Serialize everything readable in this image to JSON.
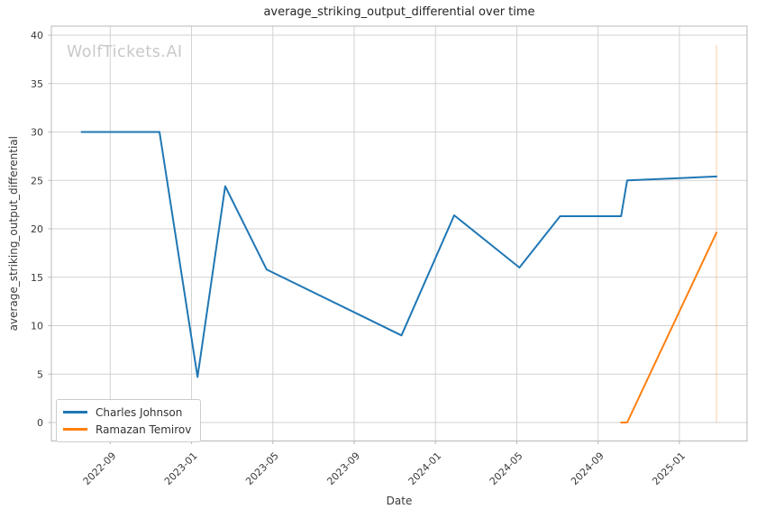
{
  "watermark": "WolfTickets.AI",
  "chart_data": {
    "type": "line",
    "title": "average_striking_output_differential over time",
    "xlabel": "Date",
    "ylabel": "average_striking_output_differential",
    "grid": true,
    "legend_position": "lower left",
    "x_ticks": [
      "2022-09",
      "2023-01",
      "2023-05",
      "2023-09",
      "2024-01",
      "2024-05",
      "2024-09",
      "2025-01"
    ],
    "y_ticks": [
      0,
      5,
      10,
      15,
      20,
      25,
      30,
      35,
      40
    ],
    "ylim": [
      -1.95,
      40.95
    ],
    "xlim": [
      "2022-06-04",
      "2025-04-10"
    ],
    "series": [
      {
        "name": "Charles Johnson",
        "color": "#1f77b4",
        "points": [
          [
            "2022-07-19",
            30.0
          ],
          [
            "2022-11-14",
            30.0
          ],
          [
            "2023-01-10",
            4.7
          ],
          [
            "2023-02-21",
            24.4
          ],
          [
            "2023-04-22",
            15.8
          ],
          [
            "2023-11-11",
            9.0
          ],
          [
            "2024-01-29",
            21.4
          ],
          [
            "2024-05-05",
            16.0
          ],
          [
            "2024-07-05",
            21.3
          ],
          [
            "2024-10-05",
            21.3
          ],
          [
            "2024-10-14",
            25.0
          ],
          [
            "2025-02-26",
            25.4
          ]
        ]
      },
      {
        "name": "Ramazan Temirov",
        "color": "#ff7f0e",
        "points": [
          [
            "2024-10-05",
            0.0
          ],
          [
            "2024-10-14",
            0.0
          ],
          [
            "2025-02-26",
            19.6
          ]
        ]
      }
    ],
    "event_marker": {
      "date": "2025-02-26",
      "from": 0,
      "to": 39,
      "color": "#ff7f0e",
      "opacity": 0.3
    }
  },
  "style": {
    "grid_color": "#d2d2d2",
    "spine_color": "#b8b8b8",
    "tick_color": "#b8b8b8",
    "tick_label_color": "#3a3a3a",
    "line_width": 2
  }
}
